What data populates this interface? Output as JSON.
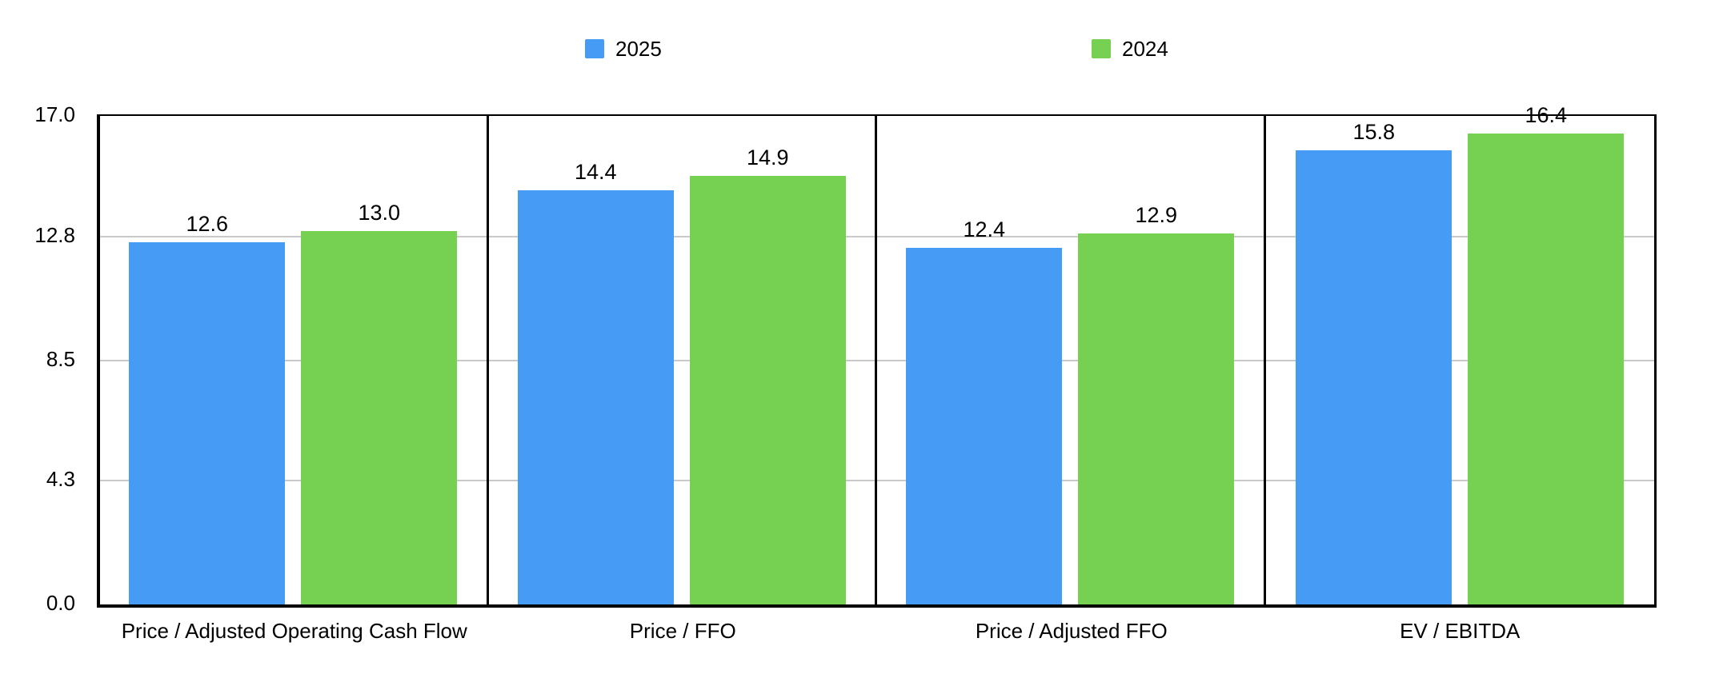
{
  "chart_data": {
    "type": "bar",
    "title": "",
    "categories": [
      "Price / Adjusted Operating Cash Flow",
      "Price / FFO",
      "Price / Adjusted FFO",
      "EV / EBITDA"
    ],
    "series": [
      {
        "name": "2025",
        "color": "#469CF4",
        "values": [
          12.6,
          14.4,
          12.4,
          15.8
        ]
      },
      {
        "name": "2024",
        "color": "#76D152",
        "values": [
          13.0,
          14.9,
          12.9,
          16.4
        ]
      }
    ],
    "value_labels": [
      [
        "12.6",
        "14.4",
        "12.4",
        "15.8"
      ],
      [
        "13.0",
        "14.9",
        "12.9",
        "16.4"
      ]
    ],
    "y_axis": {
      "min": 0.0,
      "max": 17.0,
      "ticks": [
        {
          "value": 0.0,
          "label": "0.0"
        },
        {
          "value": 4.3,
          "label": "4.3"
        },
        {
          "value": 8.5,
          "label": "8.5"
        },
        {
          "value": 12.8,
          "label": "12.8"
        },
        {
          "value": 17.0,
          "label": "17.0"
        }
      ]
    },
    "legend_position": "top",
    "grid": true
  }
}
